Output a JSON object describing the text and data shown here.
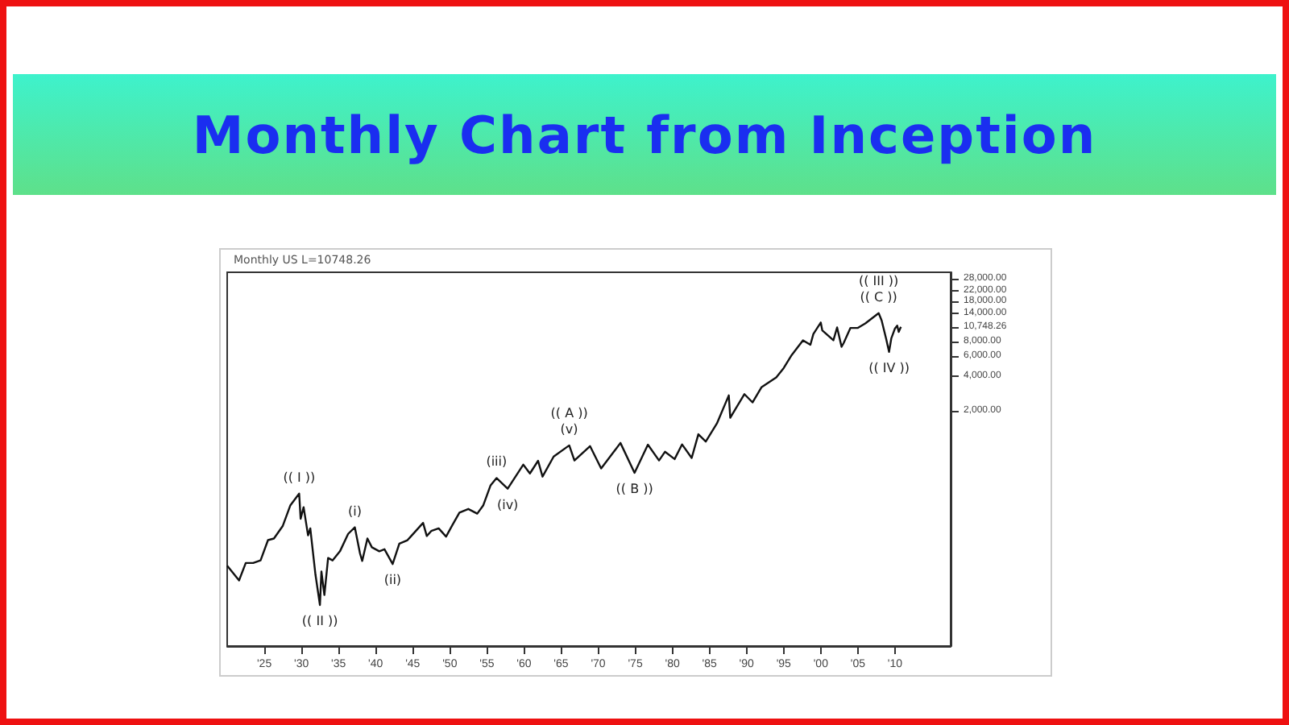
{
  "chart_data": {
    "type": "line",
    "title": "Monthly Chart from Inception",
    "annotations": [
      "Monthly US L=10748.26",
      {
        "text": "(( I ))",
        "x": 1929.7,
        "y": 381
      },
      {
        "text": "(( II ))",
        "x": 1932.5,
        "y": 41
      },
      {
        "text": "(i)",
        "x": 1937.2,
        "y": 194
      },
      {
        "text": "(ii)",
        "x": 1942.3,
        "y": 93
      },
      {
        "text": "(iii)",
        "x": 1956.3,
        "y": 520
      },
      {
        "text": "(iv)",
        "x": 1957.8,
        "y": 420
      },
      {
        "text": "(v)",
        "x": 1966.1,
        "y": 1000
      },
      {
        "text": "(( A ))",
        "x": 1966.1,
        "y": 1000
      },
      {
        "text": "(( B ))",
        "x": 1974.9,
        "y": 577
      },
      {
        "text": "(( C ))",
        "x": 2007.8,
        "y": 14100
      },
      {
        "text": "(( III ))",
        "x": 2007.8,
        "y": 14100
      },
      {
        "text": "(( IV ))",
        "x": 2009.2,
        "y": 6500
      }
    ],
    "x": [
      1920.0,
      1921.6,
      1922.5,
      1923.5,
      1924.5,
      1925.5,
      1926.3,
      1927.5,
      1928.5,
      1929.7,
      1929.9,
      1930.3,
      1930.9,
      1931.2,
      1931.9,
      1932.5,
      1932.7,
      1933.1,
      1933.6,
      1934.2,
      1935.2,
      1936.3,
      1937.2,
      1937.9,
      1938.2,
      1938.9,
      1939.5,
      1940.5,
      1941.2,
      1942.3,
      1943.2,
      1944.3,
      1946.4,
      1946.9,
      1947.5,
      1948.5,
      1949.5,
      1950.3,
      1951.3,
      1952.5,
      1953.7,
      1954.5,
      1955.5,
      1956.3,
      1957.8,
      1959.9,
      1960.8,
      1961.9,
      1962.5,
      1964.0,
      1966.1,
      1966.8,
      1968.9,
      1970.4,
      1973.0,
      1974.9,
      1976.7,
      1978.2,
      1979.0,
      1980.3,
      1981.3,
      1982.6,
      1983.5,
      1984.5,
      1986.0,
      1987.6,
      1987.8,
      1989.7,
      1990.8,
      1992.0,
      1994.0,
      1995.0,
      1996.0,
      1997.6,
      1998.6,
      1999.0,
      2000.0,
      2000.2,
      2001.7,
      2002.2,
      2002.8,
      2003.1,
      2004.0,
      2005.0,
      2006.0,
      2007.8,
      2008.2,
      2008.8,
      2009.2,
      2009.5,
      2010.0,
      2010.3,
      2010.5,
      2010.8
    ],
    "series": [
      {
        "color": "#111111",
        "values": [
          90,
          67,
          95,
          95,
          100,
          150,
          155,
          200,
          300,
          381,
          230,
          290,
          165,
          190,
          75,
          41,
          80,
          50,
          105,
          100,
          120,
          170,
          194,
          115,
          99,
          155,
          130,
          120,
          125,
          93,
          140,
          150,
          212,
          163,
          180,
          190,
          161,
          200,
          260,
          280,
          255,
          300,
          450,
          520,
          420,
          680,
          570,
          735,
          535,
          800,
          1000,
          740,
          985,
          630,
          1050,
          577,
          1015,
          740,
          880,
          760,
          1020,
          777,
          1250,
          1080,
          1550,
          2720,
          1740,
          2790,
          2365,
          3200,
          3900,
          4700,
          6000,
          8200,
          7500,
          9300,
          11700,
          10000,
          8200,
          10600,
          7200,
          7800,
          10500,
          10500,
          11500,
          14100,
          12200,
          8500,
          6500,
          8500,
          10400,
          11000,
          9700,
          10748.26
        ]
      }
    ],
    "log": true,
    "xlim": [
      1920,
      2017.5
    ],
    "xticks": [
      {
        "value": 1925,
        "label": "'25"
      },
      {
        "value": 1930,
        "label": "'30"
      },
      {
        "value": 1935,
        "label": "'35"
      },
      {
        "value": 1940,
        "label": "'40"
      },
      {
        "value": 1945,
        "label": "'45"
      },
      {
        "value": 1950,
        "label": "'50"
      },
      {
        "value": 1955,
        "label": "'55"
      },
      {
        "value": 1960,
        "label": "'60"
      },
      {
        "value": 1965,
        "label": "'65"
      },
      {
        "value": 1970,
        "label": "'70"
      },
      {
        "value": 1975,
        "label": "'75"
      },
      {
        "value": 1980,
        "label": "'80"
      },
      {
        "value": 1985,
        "label": "'85"
      },
      {
        "value": 1990,
        "label": "'90"
      },
      {
        "value": 1995,
        "label": "'95"
      },
      {
        "value": 2000,
        "label": "'00"
      },
      {
        "value": 2005,
        "label": "'05"
      },
      {
        "value": 2010,
        "label": "'10"
      }
    ],
    "ylim": [
      18,
      32000
    ],
    "yticks": [
      {
        "value": 2000,
        "label": "2,000.00"
      },
      {
        "value": 4000,
        "label": "4,000.00"
      },
      {
        "value": 6000,
        "label": "6,000.00"
      },
      {
        "value": 8000,
        "label": "8,000.00"
      },
      {
        "value": 10748.26,
        "label": "10,748.26"
      },
      {
        "value": 14000,
        "label": "14,000.00"
      },
      {
        "value": 18000,
        "label": "18,000.00"
      },
      {
        "value": 22000,
        "label": "22,000.00"
      },
      {
        "value": 28000,
        "label": "28,000.00"
      }
    ],
    "grid": false,
    "marker": "none",
    "line_style": "solid"
  }
}
